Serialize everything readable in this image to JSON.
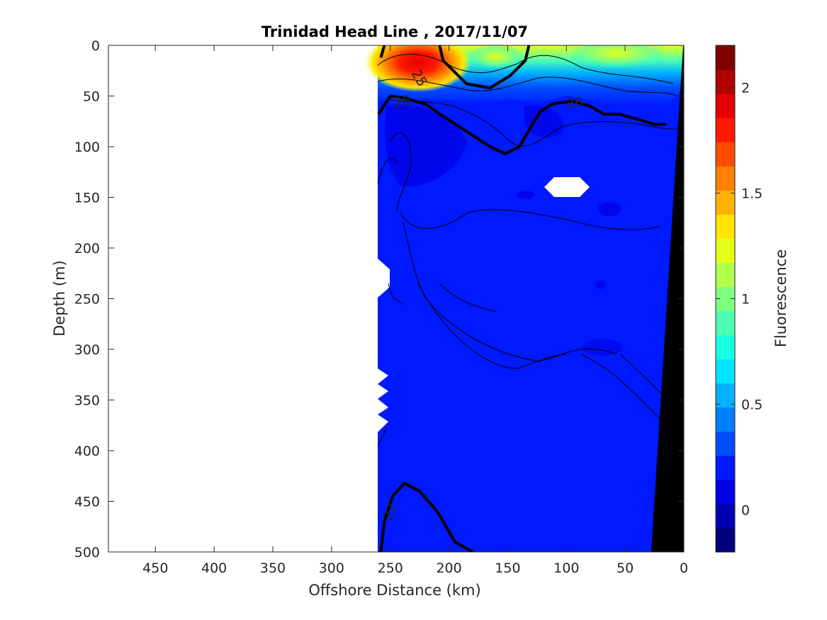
{
  "chart_data": {
    "type": "contour",
    "title": "Trinidad Head Line , 2017/11/07",
    "xlabel": "Offshore Distance (km)",
    "ylabel": "Depth (m)",
    "colorbar_label": "Fluorescence",
    "x_reversed": true,
    "y_reversed": true,
    "xlim": [
      490,
      0
    ],
    "ylim": [
      0,
      500
    ],
    "xticks": [
      450,
      400,
      350,
      300,
      250,
      200,
      150,
      100,
      50,
      0
    ],
    "yticks": [
      0,
      50,
      100,
      150,
      200,
      250,
      300,
      350,
      400,
      450,
      500
    ],
    "colorbar_range": [
      -0.2,
      2.2
    ],
    "colorbar_ticks": [
      0,
      0.5,
      1,
      1.5,
      2
    ],
    "colorbar_ticks_text": [
      "0",
      "0.5",
      "1",
      "1.5",
      "2"
    ],
    "colormap": [
      "#00007f",
      "#0000b2",
      "#0000e5",
      "#0019ff",
      "#004cff",
      "#007fff",
      "#00b2ff",
      "#00e5ff",
      "#19ffe5",
      "#4cffb2",
      "#7fff7f",
      "#b2ff4c",
      "#e5ff19",
      "#ffe500",
      "#ffb200",
      "#ff7f00",
      "#ff4c00",
      "#ff1900",
      "#e50000",
      "#b20000",
      "#7f0000"
    ],
    "data_extent_km": [
      260,
      0
    ],
    "density_contours": [
      {
        "label": "25",
        "bold": true,
        "points": [
          [
            258,
            12
          ],
          [
            255,
            0
          ],
          null,
          [
            208,
            0
          ],
          [
            205,
            15
          ],
          [
            185,
            38
          ],
          [
            165,
            42
          ],
          [
            148,
            30
          ],
          [
            135,
            15
          ],
          [
            132,
            0
          ]
        ]
      },
      {
        "label": "26",
        "bold": true,
        "points": [
          [
            260,
            68
          ],
          [
            250,
            50
          ],
          [
            238,
            52
          ],
          [
            220,
            58
          ],
          [
            205,
            70
          ],
          [
            185,
            85
          ],
          [
            165,
            100
          ],
          [
            152,
            107
          ],
          [
            140,
            100
          ],
          [
            130,
            80
          ],
          [
            122,
            65
          ],
          [
            112,
            58
          ],
          [
            95,
            55
          ],
          [
            80,
            60
          ],
          [
            68,
            68
          ],
          [
            55,
            68
          ],
          [
            42,
            72
          ],
          [
            25,
            78
          ],
          [
            15,
            78
          ]
        ]
      },
      {
        "label": "27",
        "bold": true,
        "points": [
          [
            258,
            500
          ],
          [
            255,
            470
          ],
          [
            248,
            445
          ],
          [
            238,
            432
          ],
          [
            225,
            440
          ],
          [
            210,
            460
          ],
          [
            195,
            490
          ],
          [
            180,
            500
          ]
        ]
      }
    ],
    "annotations": [
      {
        "text": "25",
        "x": 225,
        "y": 32,
        "rotation": 60
      },
      {
        "text": "26",
        "x": 240,
        "y": 55,
        "rotation": -8
      },
      {
        "text": "26",
        "x": 93,
        "y": 56,
        "rotation": -5
      },
      {
        "text": "27",
        "x": 250,
        "y": 460,
        "rotation": -70
      }
    ]
  }
}
